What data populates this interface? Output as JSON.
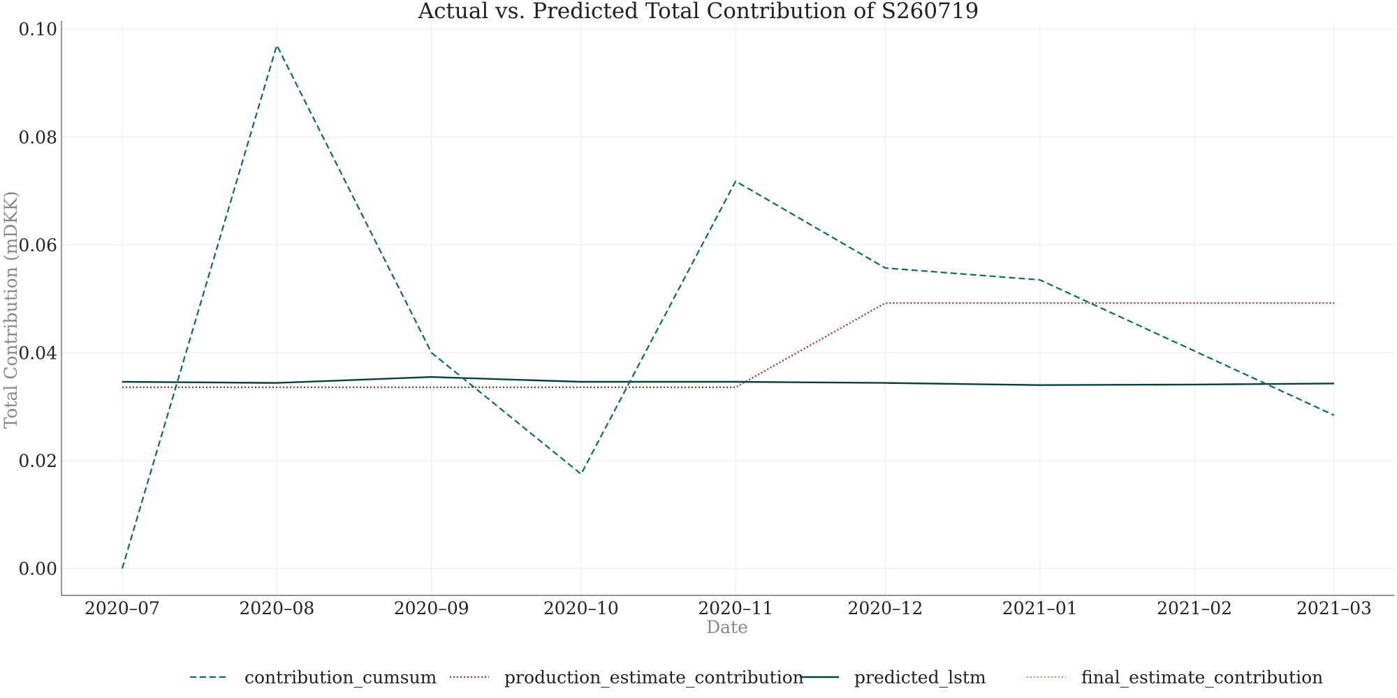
{
  "chart_data": {
    "type": "line",
    "title": "Actual vs. Predicted Total Contribution of S260719",
    "xlabel": "Date",
    "ylabel": "Total Contribution (mDKK)",
    "x": [
      "2020–07-01",
      "2020–08-01",
      "2020–09-01",
      "2020–10-01",
      "2020–11-01",
      "2020–12-01",
      "2021–01-01",
      "2021–02-01",
      "2021–03-01"
    ],
    "x_ticks": [
      "2020–07",
      "2020–08",
      "2020–09",
      "2020–10",
      "2020–11",
      "2020–12",
      "2021–01",
      "2021–02",
      "2021–03"
    ],
    "x_dates": [
      "2020-07-01",
      "2020-08-01",
      "2020-09-01",
      "2020-10-01",
      "2020-11-01",
      "2020-12-01",
      "2021-01-01",
      "2021-02-01",
      "2021-03-01"
    ],
    "y_ticks": [
      "0.00",
      "0.02",
      "0.04",
      "0.06",
      "0.08",
      "0.10"
    ],
    "ylim": [
      -0.005,
      0.101
    ],
    "grid": true,
    "legend_position": "bottom",
    "series": [
      {
        "name": "contribution_cumsum",
        "style": "dashed",
        "color": "#0b6b61",
        "points": [
          [
            "2020-07-01",
            0.0
          ],
          [
            "2020-08-01",
            0.097
          ],
          [
            "2020-09-01",
            0.04
          ],
          [
            "2020-10-01",
            0.0175
          ],
          [
            "2020-11-01",
            0.0718
          ],
          [
            "2020-12-01",
            0.0557
          ],
          [
            "2021-01-01",
            0.0535
          ],
          [
            "2021-03-01",
            0.0284
          ]
        ]
      },
      {
        "name": "production_estimate_contribution",
        "style": "dotted",
        "color": "#a8322a",
        "points": [
          [
            "2020-07-01",
            0.0336
          ],
          [
            "2020-08-01",
            0.0336
          ],
          [
            "2020-09-01",
            0.0336
          ],
          [
            "2020-10-01",
            0.0336
          ],
          [
            "2020-11-01",
            0.0336
          ],
          [
            "2020-12-01",
            0.0492
          ],
          [
            "2021-01-01",
            0.0492
          ],
          [
            "2021-03-01",
            0.0492
          ]
        ]
      },
      {
        "name": "predicted_lstm",
        "style": "solid",
        "color": "#083f3e",
        "points": [
          [
            "2020-07-01",
            0.0346
          ],
          [
            "2020-08-01",
            0.0344
          ],
          [
            "2020-09-01",
            0.0355
          ],
          [
            "2020-10-01",
            0.0346
          ],
          [
            "2020-11-01",
            0.0346
          ],
          [
            "2020-12-01",
            0.0344
          ],
          [
            "2021-01-01",
            0.034
          ],
          [
            "2021-02-01",
            0.0341
          ],
          [
            "2021-03-01",
            0.0343
          ]
        ]
      },
      {
        "name": "final_estimate_contribution",
        "style": "dotted",
        "color": "#d98b6a",
        "points": [
          [
            "2020-07-01",
            0.0336
          ],
          [
            "2020-08-01",
            0.0336
          ],
          [
            "2020-09-01",
            0.0336
          ],
          [
            "2020-10-01",
            0.0336
          ],
          [
            "2020-11-01",
            0.0336
          ],
          [
            "2020-12-01",
            0.0492
          ],
          [
            "2021-01-01",
            0.0492
          ],
          [
            "2021-03-01",
            0.0492
          ]
        ]
      }
    ]
  }
}
